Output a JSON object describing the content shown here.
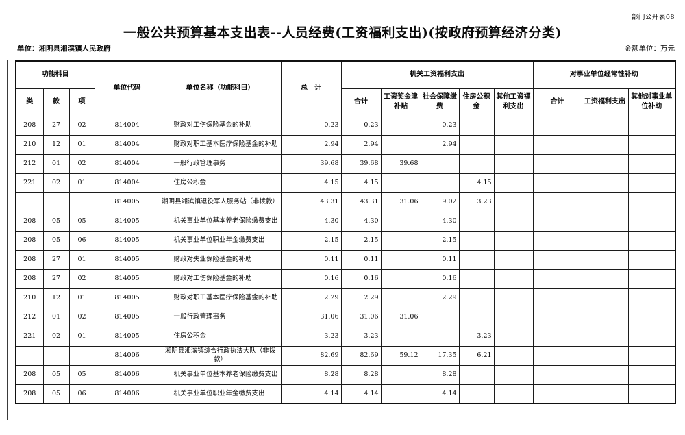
{
  "page": {
    "corner_label": "部门公开表08",
    "title": "一般公共预算基本支出表--人员经费(工资福利支出)(按政府预算经济分类)",
    "unit_label": "单位：湘阴县湘滨镇人民政府",
    "amount_unit_label": "金额单位：万元"
  },
  "table": {
    "headers": {
      "func_group": "功能科目",
      "func_cols": [
        "类",
        "款",
        "项"
      ],
      "unit_code": "单位代码",
      "unit_name": "单位名称（功能科目）",
      "grand_total": "总　计",
      "org_wage_group": "机关工资福利支出",
      "org_wage_cols": [
        "合计",
        "工资奖金津补贴",
        "社会保障缴费",
        "住房公积金",
        "其他工资福利支出"
      ],
      "subsidy_group": "对事业单位经常性补助",
      "subsidy_cols": [
        "合计",
        "工资福利支出",
        "其他对事业单位补助"
      ]
    },
    "rows": [
      {
        "summary": false,
        "cells": [
          "208",
          "27",
          "02",
          "814004",
          "财政对工伤保险基金的补助",
          "0.23",
          "0.23",
          "",
          "0.23",
          "",
          "",
          "",
          "",
          ""
        ]
      },
      {
        "summary": false,
        "cells": [
          "210",
          "12",
          "01",
          "814004",
          "财政对职工基本医疗保险基金的补助",
          "2.94",
          "2.94",
          "",
          "2.94",
          "",
          "",
          "",
          "",
          ""
        ]
      },
      {
        "summary": false,
        "cells": [
          "212",
          "01",
          "02",
          "814004",
          "一般行政管理事务",
          "39.68",
          "39.68",
          "39.68",
          "",
          "",
          "",
          "",
          "",
          ""
        ]
      },
      {
        "summary": false,
        "cells": [
          "221",
          "02",
          "01",
          "814004",
          "住房公积金",
          "4.15",
          "4.15",
          "",
          "",
          "4.15",
          "",
          "",
          "",
          ""
        ]
      },
      {
        "summary": true,
        "cells": [
          "",
          "",
          "",
          "814005",
          "湘阴县湘滨镇退役军人服务站（非拨款）",
          "43.31",
          "43.31",
          "31.06",
          "9.02",
          "3.23",
          "",
          "",
          "",
          ""
        ]
      },
      {
        "summary": false,
        "cells": [
          "208",
          "05",
          "05",
          "814005",
          "机关事业单位基本养老保险缴费支出",
          "4.30",
          "4.30",
          "",
          "4.30",
          "",
          "",
          "",
          "",
          ""
        ]
      },
      {
        "summary": false,
        "cells": [
          "208",
          "05",
          "06",
          "814005",
          "机关事业单位职业年金缴费支出",
          "2.15",
          "2.15",
          "",
          "2.15",
          "",
          "",
          "",
          "",
          ""
        ]
      },
      {
        "summary": false,
        "cells": [
          "208",
          "27",
          "01",
          "814005",
          "财政对失业保险基金的补助",
          "0.11",
          "0.11",
          "",
          "0.11",
          "",
          "",
          "",
          "",
          ""
        ]
      },
      {
        "summary": false,
        "cells": [
          "208",
          "27",
          "02",
          "814005",
          "财政对工伤保险基金的补助",
          "0.16",
          "0.16",
          "",
          "0.16",
          "",
          "",
          "",
          "",
          ""
        ]
      },
      {
        "summary": false,
        "cells": [
          "210",
          "12",
          "01",
          "814005",
          "财政对职工基本医疗保险基金的补助",
          "2.29",
          "2.29",
          "",
          "2.29",
          "",
          "",
          "",
          "",
          ""
        ]
      },
      {
        "summary": false,
        "cells": [
          "212",
          "01",
          "02",
          "814005",
          "一般行政管理事务",
          "31.06",
          "31.06",
          "31.06",
          "",
          "",
          "",
          "",
          "",
          ""
        ]
      },
      {
        "summary": false,
        "cells": [
          "221",
          "02",
          "01",
          "814005",
          "住房公积金",
          "3.23",
          "3.23",
          "",
          "",
          "3.23",
          "",
          "",
          "",
          ""
        ]
      },
      {
        "summary": true,
        "cells": [
          "",
          "",
          "",
          "814006",
          "湘阴县湘滨镇综合行政执法大队（非拨款）",
          "82.69",
          "82.69",
          "59.12",
          "17.35",
          "6.21",
          "",
          "",
          "",
          ""
        ]
      },
      {
        "summary": false,
        "cells": [
          "208",
          "05",
          "05",
          "814006",
          "机关事业单位基本养老保险缴费支出",
          "8.28",
          "8.28",
          "",
          "8.28",
          "",
          "",
          "",
          "",
          ""
        ]
      },
      {
        "summary": false,
        "cells": [
          "208",
          "05",
          "06",
          "814006",
          "机关事业单位职业年金缴费支出",
          "4.14",
          "4.14",
          "",
          "4.14",
          "",
          "",
          "",
          "",
          ""
        ]
      }
    ]
  }
}
